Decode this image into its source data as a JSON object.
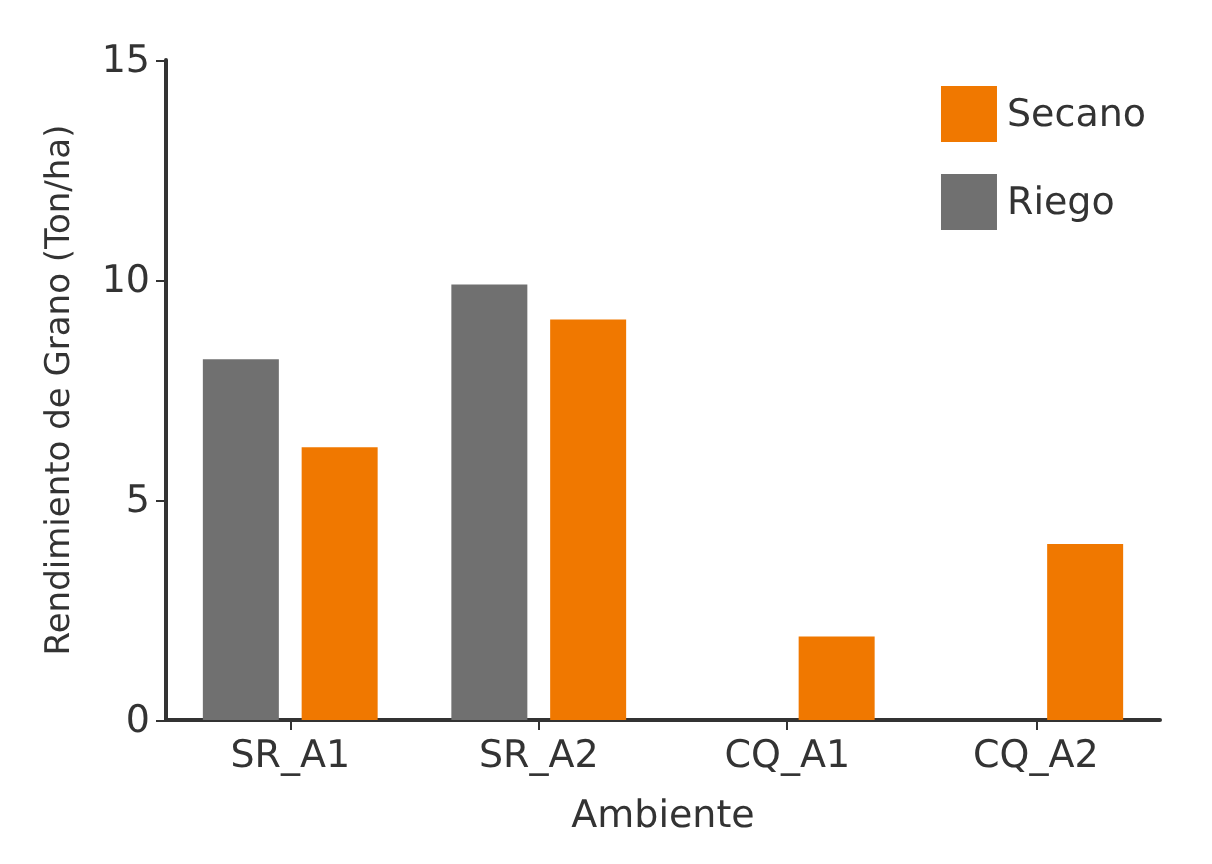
{
  "chart_data": {
    "type": "bar",
    "xlabel": "Ambiente",
    "ylabel": "Rendimiento de Grano (Ton/ha)",
    "categories": [
      "SR_A1",
      "SR_A2",
      "CQ_A1",
      "CQ_A2"
    ],
    "series": [
      {
        "name": "Riego",
        "color": "#707070",
        "values": [
          8.2,
          9.9,
          null,
          null
        ]
      },
      {
        "name": "Secano",
        "color": "#f07800",
        "values": [
          6.2,
          9.1,
          1.9,
          4.0
        ]
      }
    ],
    "ylim": [
      0,
      15
    ],
    "yticks": [
      0,
      5,
      10,
      15
    ],
    "grid": false,
    "legend": "top right"
  }
}
